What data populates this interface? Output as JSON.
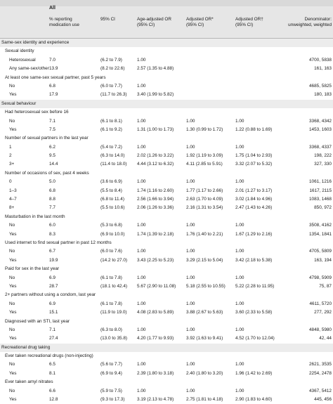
{
  "table": {
    "group_label": "All",
    "headers": [
      "% reporting\nmedication use",
      "95% CI",
      "Age-adjusted OR\n(95% CI)",
      "Adjusted OR*\n(95% CI)",
      "Adjusted OR†\n(95% CI)",
      "Denominator:\nunweighted, weighted"
    ],
    "rows": [
      {
        "type": "section",
        "level": 0,
        "label": "Same-sex identity and experience"
      },
      {
        "type": "heading",
        "level": 1,
        "label": "Sexual identity"
      },
      {
        "type": "data",
        "level": 2,
        "label": "Heterosexual",
        "pct": "7.0",
        "ci": "(6.2 to 7.9)",
        "age_or": "1.00",
        "or1": "",
        "or2": "",
        "denom": "4700, 5838"
      },
      {
        "type": "data",
        "level": 2,
        "label": "Any same-sex/other",
        "pct": "13.9",
        "ci": "(8.2 to 22.6)",
        "age_or": "2.57 (1.35 to 4.88)",
        "or1": "",
        "or2": "",
        "denom": "161, 163"
      },
      {
        "type": "heading",
        "level": 1,
        "label": "At least one same-sex sexual partner, past 5 years"
      },
      {
        "type": "data",
        "level": 2,
        "label": "No",
        "pct": "6.8",
        "ci": "(6.0 to 7.7)",
        "age_or": "1.00",
        "or1": "",
        "or2": "",
        "denom": "4685, 5825"
      },
      {
        "type": "data",
        "level": 2,
        "label": "Yes",
        "pct": "17.9",
        "ci": "(11.7 to 26.3)",
        "age_or": "3.40 (1.99 to 5.82)",
        "or1": "",
        "or2": "",
        "denom": "180, 183"
      },
      {
        "type": "section",
        "level": 0,
        "label": "Sexual behaviour"
      },
      {
        "type": "heading",
        "level": 1,
        "label": "Had heterosexual sex before 16"
      },
      {
        "type": "data",
        "level": 2,
        "label": "No",
        "pct": "7.1",
        "ci": "(6.1 to 8.1)",
        "age_or": "1.00",
        "or1": "1.00",
        "or2": "1.00",
        "denom": "3368, 4342"
      },
      {
        "type": "data",
        "level": 2,
        "label": "Yes",
        "pct": "7.5",
        "ci": "(6.1 to 9.2)",
        "age_or": "1.31 (1.00 to 1.73)",
        "or1": "1.30 (0.99 to 1.72)",
        "or2": "1.22 (0.88 to 1.69)",
        "denom": "1453, 1603"
      },
      {
        "type": "heading",
        "level": 1,
        "label": "Number of sexual partners in the last year"
      },
      {
        "type": "data",
        "level": 2,
        "label": "1",
        "pct": "6.2",
        "ci": "(5.4 to 7.2)",
        "age_or": "1.00",
        "or1": "1.00",
        "or2": "1.00",
        "denom": "3368, 4337"
      },
      {
        "type": "data",
        "level": 2,
        "label": "2",
        "pct": "9.5",
        "ci": "(6.3 to 14.0)",
        "age_or": "2.02 (1.26 to 3.22)",
        "or1": "1.92 (1.19 to 3.09)",
        "or2": "1.75 (1.04 to 2.93)",
        "denom": "198, 222"
      },
      {
        "type": "data",
        "level": 2,
        "label": "3+",
        "pct": "14.4",
        "ci": "(11.4 to 18.0)",
        "age_or": "4.44 (3.12 to 6.32)",
        "or1": "4.11 (2.85 to 5.91)",
        "or2": "3.32 (2.07 to 5.32)",
        "denom": "327, 330"
      },
      {
        "type": "heading",
        "level": 1,
        "label": "Number of occasions of sex, past 4 weeks"
      },
      {
        "type": "data",
        "level": 2,
        "label": "0",
        "pct": "5.0",
        "ci": "(3.6 to 6.9)",
        "age_or": "1.00",
        "or1": "1.00",
        "or2": "1.00",
        "denom": "1061, 1216"
      },
      {
        "type": "data",
        "level": 2,
        "label": "1–3",
        "pct": "6.8",
        "ci": "(5.5 to 8.4)",
        "age_or": "1.74 (1.16 to 2.60)",
        "or1": "1.77 (1.17 to 2.66)",
        "or2": "2.01 (1.27 to 3.17)",
        "denom": "1617, 2115"
      },
      {
        "type": "data",
        "level": 2,
        "label": "4–7",
        "pct": "8.8",
        "ci": "(6.8 to 11.4)",
        "age_or": "2.56 (1.66 to 3.94)",
        "or1": "2.63 (1.70 to 4.09)",
        "or2": "3.02 (1.84 to 4.96)",
        "denom": "1083, 1468"
      },
      {
        "type": "data",
        "level": 2,
        "label": "8+",
        "pct": "7.7",
        "ci": "(5.5 to 10.6)",
        "age_or": "2.06 (1.26 to 3.36)",
        "or1": "2.16 (1.31 to 3.54)",
        "or2": "2.47 (1.43 to 4.26)",
        "denom": "850, 972"
      },
      {
        "type": "heading",
        "level": 1,
        "label": "Masturbation in the last month"
      },
      {
        "type": "data",
        "level": 2,
        "label": "No",
        "pct": "6.0",
        "ci": "(5.3 to 6.8)",
        "age_or": "1.00",
        "or1": "1.00",
        "or2": "1.00",
        "denom": "3508, 4162"
      },
      {
        "type": "data",
        "level": 2,
        "label": "Yes",
        "pct": "8.3",
        "ci": "(6.9 to 10.0)",
        "age_or": "1.74 (1.39 to 2.18)",
        "or1": "1.76 (1.40 to 2.21)",
        "or2": "1.67 (1.29 to 2.16)",
        "denom": "1354, 1841"
      },
      {
        "type": "heading",
        "level": 1,
        "label": "Used internet to find sexual partner in past 12 months"
      },
      {
        "type": "data",
        "level": 2,
        "label": "No",
        "pct": "6.7",
        "ci": "(6.0 to 7.6)",
        "age_or": "1.00",
        "or1": "1.00",
        "or2": "1.00",
        "denom": "4705, 5809"
      },
      {
        "type": "data",
        "level": 2,
        "label": "Yes",
        "pct": "19.9",
        "ci": "(14.2 to 27.0)",
        "age_or": "3.43 (2.25 to 5.23)",
        "or1": "3.29 (2.15 to 5.04)",
        "or2": "3.42 (2.18 to 5.38)",
        "denom": "163, 194"
      },
      {
        "type": "heading",
        "level": 1,
        "label": "Paid for sex in the last year"
      },
      {
        "type": "data",
        "level": 2,
        "label": "No",
        "pct": "6.9",
        "ci": "(6.1 to 7.8)",
        "age_or": "1.00",
        "or1": "1.00",
        "or2": "1.00",
        "denom": "4798, 5909"
      },
      {
        "type": "data",
        "level": 2,
        "label": "Yes",
        "pct": "28.7",
        "ci": "(18.1 to 42.4)",
        "age_or": "5.67 (2.90 to 11.08)",
        "or1": "5.18 (2.55 to 10.55)",
        "or2": "5.22 (2.28 to 11.95)",
        "denom": "75, 87"
      },
      {
        "type": "heading",
        "level": 1,
        "label": "2+ partners without using a condom, last year"
      },
      {
        "type": "data",
        "level": 2,
        "label": "No",
        "pct": "6.9",
        "ci": "(6.1 to 7.8)",
        "age_or": "1.00",
        "or1": "1.00",
        "or2": "1.00",
        "denom": "4611, 5720"
      },
      {
        "type": "data",
        "level": 2,
        "label": "Yes",
        "pct": "15.1",
        "ci": "(11.9 to 19.0)",
        "age_or": "4.08 (2.83 to 5.89)",
        "or1": "3.88 (2.67 to 5.63)",
        "or2": "3.60 (2.33 to 5.58)",
        "denom": "277, 292"
      },
      {
        "type": "heading",
        "level": 1,
        "label": "Diagnosed with an STI, last year"
      },
      {
        "type": "data",
        "level": 2,
        "label": "No",
        "pct": "7.1",
        "ci": "(6.3 to 8.0)",
        "age_or": "1.00",
        "or1": "1.00",
        "or2": "1.00",
        "denom": "4848, 5980"
      },
      {
        "type": "data",
        "level": 2,
        "label": "Yes",
        "pct": "27.4",
        "ci": "(13.0 to 35.8)",
        "age_or": "4.20 (1.77 to 9.93)",
        "or1": "3.92 (1.63 to 9.41)",
        "or2": "4.52 (1.70 to 12.04)",
        "denom": "42, 44"
      },
      {
        "type": "section",
        "level": 0,
        "label": "Recreational drug taking"
      },
      {
        "type": "heading",
        "level": 1,
        "label": "Ever taken recreational drugs (non-injecting)"
      },
      {
        "type": "data",
        "level": 2,
        "label": "No",
        "pct": "6.5",
        "ci": "(5.6 to 7.7)",
        "age_or": "1.00",
        "or1": "1.00",
        "or2": "1.00",
        "denom": "2621, 3535"
      },
      {
        "type": "data",
        "level": 2,
        "label": "Yes",
        "pct": "8.1",
        "ci": "(6.9 to 9.4)",
        "age_or": "2.39 (1.80 to 3.18)",
        "or1": "2.40 (1.80 to 3.20)",
        "or2": "1.96 (1.42 to 2.69)",
        "denom": "2254, 2478"
      },
      {
        "type": "heading",
        "level": 1,
        "label": "Ever taken amyl nitrates"
      },
      {
        "type": "data",
        "level": 2,
        "label": "No",
        "pct": "6.6",
        "ci": "(5.9 to 7.5)",
        "age_or": "1.00",
        "or1": "1.00",
        "or2": "1.00",
        "denom": "4367, 5412"
      },
      {
        "type": "data",
        "level": 2,
        "label": "Yes",
        "pct": "12.8",
        "ci": "(9.3 to 17.3)",
        "age_or": "3.19 (2.13 to 4.78)",
        "or1": "2.75 (1.81 to 4.18)",
        "or2": "2.90 (1.83 to 4.60)",
        "denom": "445, 456"
      }
    ]
  }
}
